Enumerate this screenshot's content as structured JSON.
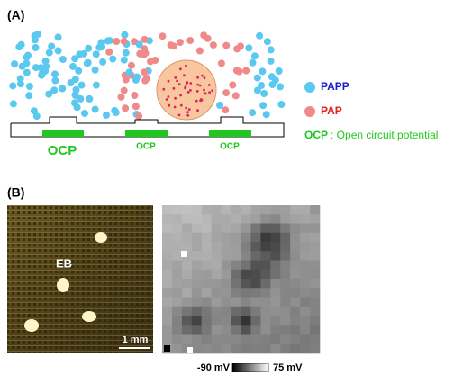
{
  "panel_a": {
    "label": "(A)",
    "electrode_labels": [
      "OCP",
      "OCP",
      "OCP"
    ],
    "legend": {
      "papp": "PAPP",
      "pap": "PAP",
      "ocp": "OCP",
      "ocp_text": ": Open circuit potential"
    }
  },
  "panel_b": {
    "label": "(B)",
    "marker": "EB",
    "scale_bar": "1 mm",
    "colorbar": {
      "min": "-90 mV",
      "max": "75 mV"
    }
  }
}
